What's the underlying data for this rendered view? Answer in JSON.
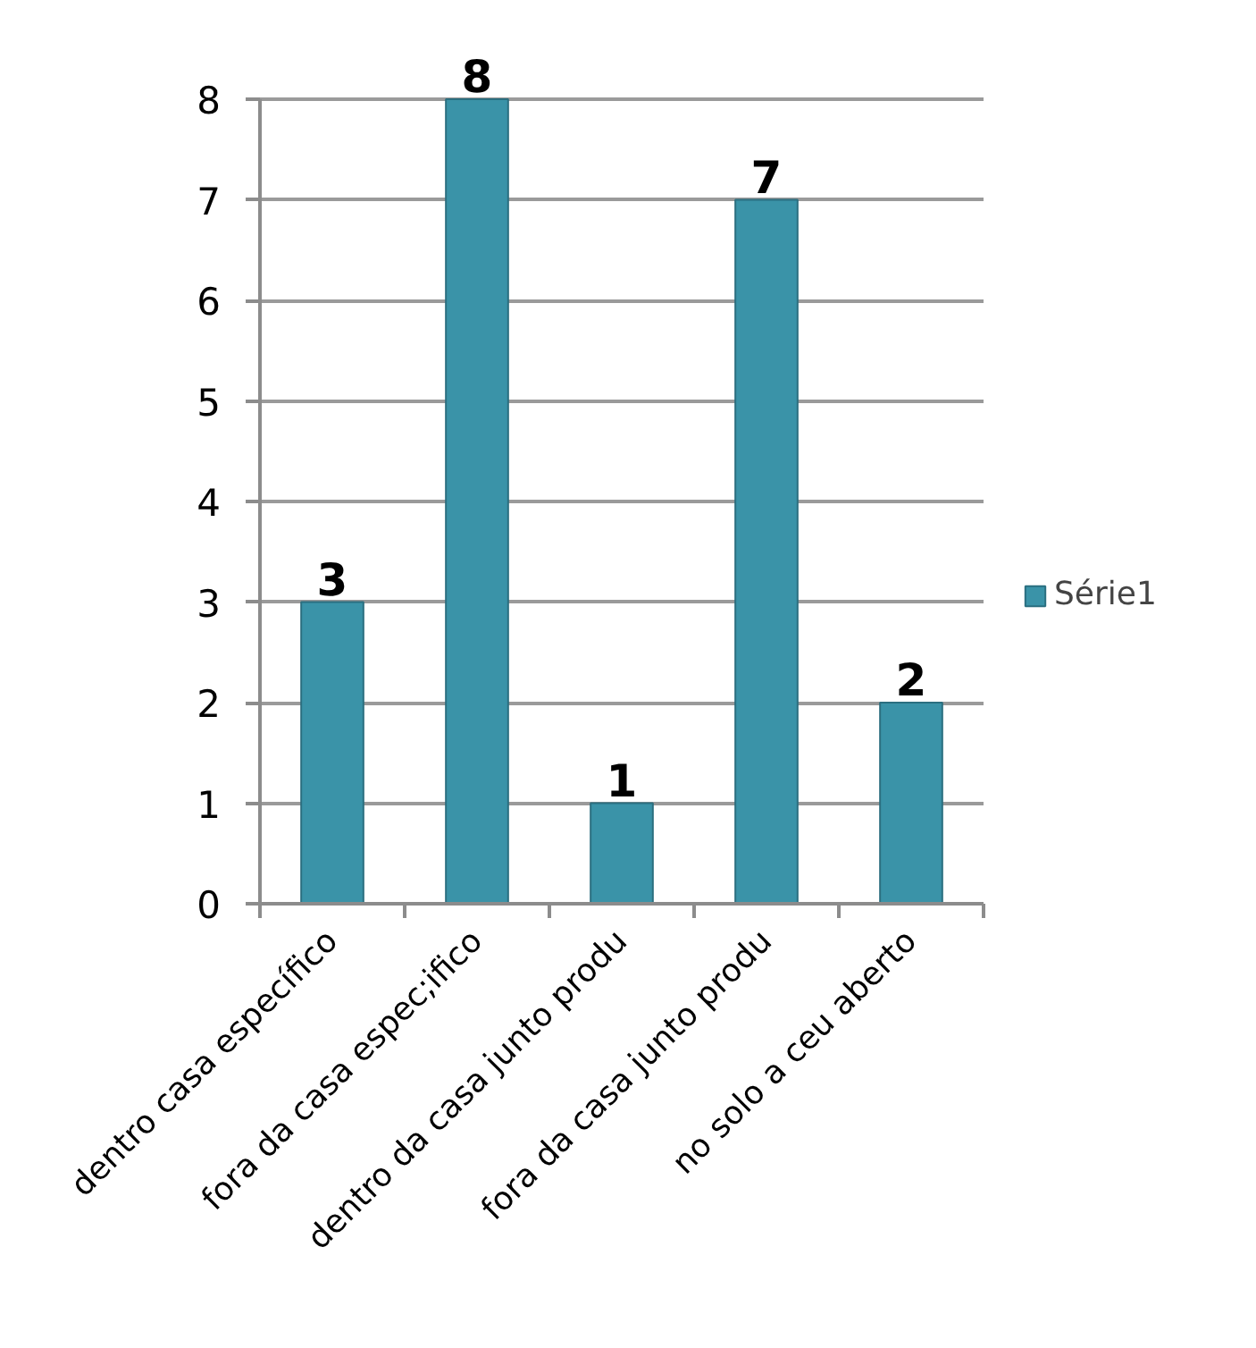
{
  "chart_data": {
    "type": "bar",
    "categories": [
      "dentro casa específico",
      "fora da casa espec;ifico",
      "dentro da casa junto produ",
      "fora da casa junto produ",
      "no solo a ceu aberto"
    ],
    "series": [
      {
        "name": "Série1",
        "color": "#3a93a8",
        "values": [
          3,
          8,
          1,
          7,
          2
        ]
      }
    ],
    "ylim": [
      0,
      8
    ],
    "yticks": [
      0,
      1,
      2,
      3,
      4,
      5,
      6,
      7,
      8
    ],
    "grid": "y",
    "legend": "right",
    "data_labels": true
  }
}
